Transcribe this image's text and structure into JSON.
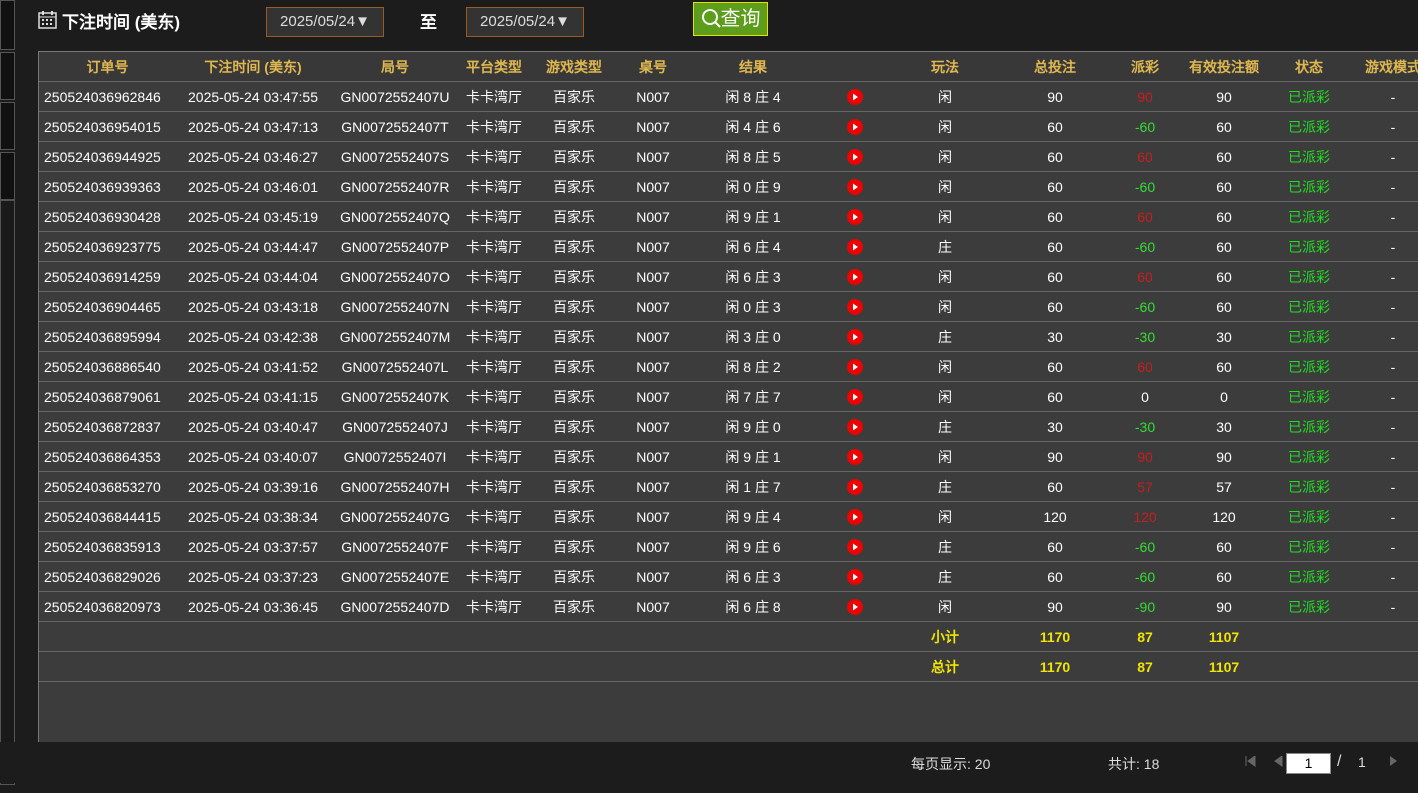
{
  "filter": {
    "label": "下注时间 (美东)",
    "start": "2025/05/24▼",
    "to": "至",
    "end": "2025/05/24▼",
    "button": "查询"
  },
  "table": {
    "headers": [
      "订单号",
      "下注时间 (美东)",
      "局号",
      "平台类型",
      "游戏类型",
      "桌号",
      "结果",
      "玩法",
      "总投注",
      "派彩",
      "有效投注额",
      "状态",
      "游戏模式"
    ],
    "rows": [
      [
        "250524036962846",
        "2025-05-24 03:47:55",
        "GN0072552407U",
        "卡卡湾厅",
        "百家乐",
        "N007",
        "闲 8 庄 4",
        "闲",
        "90",
        "90",
        "90",
        "已派彩",
        "-"
      ],
      [
        "250524036954015",
        "2025-05-24 03:47:13",
        "GN0072552407T",
        "卡卡湾厅",
        "百家乐",
        "N007",
        "闲 4 庄 6",
        "闲",
        "60",
        "-60",
        "60",
        "已派彩",
        "-"
      ],
      [
        "250524036944925",
        "2025-05-24 03:46:27",
        "GN0072552407S",
        "卡卡湾厅",
        "百家乐",
        "N007",
        "闲 8 庄 5",
        "闲",
        "60",
        "60",
        "60",
        "已派彩",
        "-"
      ],
      [
        "250524036939363",
        "2025-05-24 03:46:01",
        "GN0072552407R",
        "卡卡湾厅",
        "百家乐",
        "N007",
        "闲 0 庄 9",
        "闲",
        "60",
        "-60",
        "60",
        "已派彩",
        "-"
      ],
      [
        "250524036930428",
        "2025-05-24 03:45:19",
        "GN0072552407Q",
        "卡卡湾厅",
        "百家乐",
        "N007",
        "闲 9 庄 1",
        "闲",
        "60",
        "60",
        "60",
        "已派彩",
        "-"
      ],
      [
        "250524036923775",
        "2025-05-24 03:44:47",
        "GN0072552407P",
        "卡卡湾厅",
        "百家乐",
        "N007",
        "闲 6 庄 4",
        "庄",
        "60",
        "-60",
        "60",
        "已派彩",
        "-"
      ],
      [
        "250524036914259",
        "2025-05-24 03:44:04",
        "GN0072552407O",
        "卡卡湾厅",
        "百家乐",
        "N007",
        "闲 6 庄 3",
        "闲",
        "60",
        "60",
        "60",
        "已派彩",
        "-"
      ],
      [
        "250524036904465",
        "2025-05-24 03:43:18",
        "GN0072552407N",
        "卡卡湾厅",
        "百家乐",
        "N007",
        "闲 0 庄 3",
        "闲",
        "60",
        "-60",
        "60",
        "已派彩",
        "-"
      ],
      [
        "250524036895994",
        "2025-05-24 03:42:38",
        "GN0072552407M",
        "卡卡湾厅",
        "百家乐",
        "N007",
        "闲 3 庄 0",
        "庄",
        "30",
        "-30",
        "30",
        "已派彩",
        "-"
      ],
      [
        "250524036886540",
        "2025-05-24 03:41:52",
        "GN0072552407L",
        "卡卡湾厅",
        "百家乐",
        "N007",
        "闲 8 庄 2",
        "闲",
        "60",
        "60",
        "60",
        "已派彩",
        "-"
      ],
      [
        "250524036879061",
        "2025-05-24 03:41:15",
        "GN0072552407K",
        "卡卡湾厅",
        "百家乐",
        "N007",
        "闲 7 庄 7",
        "闲",
        "60",
        "0",
        "0",
        "已派彩",
        "-"
      ],
      [
        "250524036872837",
        "2025-05-24 03:40:47",
        "GN0072552407J",
        "卡卡湾厅",
        "百家乐",
        "N007",
        "闲 9 庄 0",
        "庄",
        "30",
        "-30",
        "30",
        "已派彩",
        "-"
      ],
      [
        "250524036864353",
        "2025-05-24 03:40:07",
        "GN0072552407I",
        "卡卡湾厅",
        "百家乐",
        "N007",
        "闲 9 庄 1",
        "闲",
        "90",
        "90",
        "90",
        "已派彩",
        "-"
      ],
      [
        "250524036853270",
        "2025-05-24 03:39:16",
        "GN0072552407H",
        "卡卡湾厅",
        "百家乐",
        "N007",
        "闲 1 庄 7",
        "庄",
        "60",
        "57",
        "57",
        "已派彩",
        "-"
      ],
      [
        "250524036844415",
        "2025-05-24 03:38:34",
        "GN0072552407G",
        "卡卡湾厅",
        "百家乐",
        "N007",
        "闲 9 庄 4",
        "闲",
        "120",
        "120",
        "120",
        "已派彩",
        "-"
      ],
      [
        "250524036835913",
        "2025-05-24 03:37:57",
        "GN0072552407F",
        "卡卡湾厅",
        "百家乐",
        "N007",
        "闲 9 庄 6",
        "庄",
        "60",
        "-60",
        "60",
        "已派彩",
        "-"
      ],
      [
        "250524036829026",
        "2025-05-24 03:37:23",
        "GN0072552407E",
        "卡卡湾厅",
        "百家乐",
        "N007",
        "闲 6 庄 3",
        "庄",
        "60",
        "-60",
        "60",
        "已派彩",
        "-"
      ],
      [
        "250524036820973",
        "2025-05-24 03:36:45",
        "GN0072552407D",
        "卡卡湾厅",
        "百家乐",
        "N007",
        "闲 6 庄 8",
        "闲",
        "90",
        "-90",
        "90",
        "已派彩",
        "-"
      ]
    ],
    "subtotal": [
      "小计",
      "1170",
      "87",
      "1107"
    ],
    "total": [
      "总计",
      "1170",
      "87",
      "1107"
    ]
  },
  "footer": {
    "page_size": "每页显示: 20",
    "count": "共计: 18",
    "page": "1",
    "sep": "/",
    "pages": "1"
  }
}
